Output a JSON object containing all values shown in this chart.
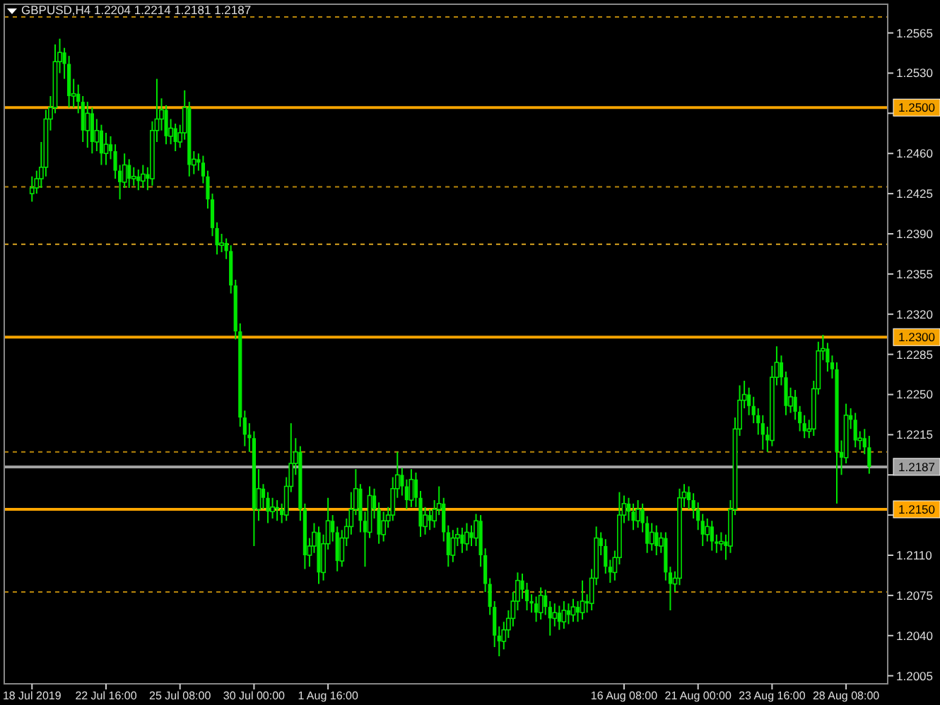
{
  "chart_data": {
    "type": "candlestick",
    "title": "GBPUSD,H4  1.2204 1.2214 1.2181 1.2187",
    "categories": [
      "18 Jul 2019",
      null,
      null,
      null,
      null,
      null,
      null,
      null,
      null,
      null,
      null,
      null,
      null,
      null,
      null,
      null,
      "22 Jul 16:00",
      null,
      null,
      null,
      null,
      null,
      null,
      null,
      null,
      null,
      null,
      null,
      null,
      null,
      null,
      null,
      "25 Jul 08:00",
      null,
      null,
      null,
      null,
      null,
      null,
      null,
      null,
      null,
      null,
      null,
      null,
      null,
      null,
      null,
      "30 Jul 00:00",
      null,
      null,
      null,
      null,
      null,
      null,
      null,
      null,
      null,
      null,
      null,
      null,
      null,
      null,
      null,
      "1 Aug 16:00",
      null,
      null,
      null,
      null,
      null,
      null,
      null,
      null,
      null,
      null,
      null,
      null,
      null,
      null,
      null,
      null,
      null,
      null,
      null,
      null,
      null,
      null,
      null,
      null,
      null,
      null,
      null,
      null,
      null,
      null,
      null,
      null,
      null,
      null,
      null,
      null,
      null,
      null,
      null,
      null,
      null,
      null,
      null,
      null,
      null,
      null,
      null,
      null,
      null,
      null,
      null,
      null,
      null,
      null,
      null,
      null,
      null,
      null,
      null,
      null,
      null,
      null,
      null,
      "16 Aug 08:00",
      null,
      null,
      null,
      null,
      null,
      null,
      null,
      null,
      null,
      null,
      null,
      null,
      null,
      null,
      null,
      "21 Aug 00:00",
      null,
      null,
      null,
      null,
      null,
      null,
      null,
      null,
      null,
      null,
      null,
      null,
      null,
      null,
      null,
      "23 Aug 16:00",
      null,
      null,
      null,
      null,
      null,
      null,
      null,
      null,
      null,
      null,
      null,
      null,
      null,
      null,
      null,
      "28 Aug 08:00",
      null,
      null,
      null,
      null,
      null
    ],
    "series": [
      {
        "color": "#00e600",
        "ohlc": [
          [
            1.2425,
            1.244,
            1.2418,
            1.243
          ],
          [
            1.243,
            1.2445,
            1.2425,
            1.2438
          ],
          [
            1.2438,
            1.247,
            1.243,
            1.2448
          ],
          [
            1.2448,
            1.2498,
            1.244,
            1.249
          ],
          [
            1.249,
            1.251,
            1.248,
            1.25
          ],
          [
            1.25,
            1.2555,
            1.2495,
            1.254
          ],
          [
            1.254,
            1.256,
            1.253,
            1.2548
          ],
          [
            1.2548,
            1.2552,
            1.2525,
            1.2538
          ],
          [
            1.2538,
            1.2545,
            1.25,
            1.251
          ],
          [
            1.251,
            1.2525,
            1.25,
            1.2512
          ],
          [
            1.2512,
            1.252,
            1.2495,
            1.2505
          ],
          [
            1.2505,
            1.251,
            1.247,
            1.248
          ],
          [
            1.248,
            1.2505,
            1.2465,
            1.2495
          ],
          [
            1.2495,
            1.25,
            1.246,
            1.247
          ],
          [
            1.247,
            1.249,
            1.2462,
            1.248
          ],
          [
            1.248,
            1.2485,
            1.245,
            1.246
          ],
          [
            1.246,
            1.2478,
            1.245,
            1.2468
          ],
          [
            1.2468,
            1.2475,
            1.2455,
            1.2462
          ],
          [
            1.2462,
            1.2468,
            1.2438,
            1.2445
          ],
          [
            1.2445,
            1.245,
            1.242,
            1.2435
          ],
          [
            1.2435,
            1.246,
            1.243,
            1.245
          ],
          [
            1.245,
            1.2455,
            1.243,
            1.2438
          ],
          [
            1.2438,
            1.2448,
            1.2432,
            1.244
          ],
          [
            1.244,
            1.2446,
            1.2428,
            1.2436
          ],
          [
            1.2436,
            1.245,
            1.243,
            1.2442
          ],
          [
            1.2442,
            1.2448,
            1.2428,
            1.2438
          ],
          [
            1.2438,
            1.2488,
            1.2432,
            1.248
          ],
          [
            1.248,
            1.2525,
            1.247,
            1.249
          ],
          [
            1.249,
            1.2508,
            1.248,
            1.2498
          ],
          [
            1.2498,
            1.2502,
            1.2468,
            1.2475
          ],
          [
            1.2475,
            1.249,
            1.2468,
            1.2482
          ],
          [
            1.2482,
            1.2486,
            1.2462,
            1.247
          ],
          [
            1.247,
            1.2485,
            1.2465,
            1.2478
          ],
          [
            1.2478,
            1.2515,
            1.2472,
            1.25
          ],
          [
            1.25,
            1.2505,
            1.244,
            1.245
          ],
          [
            1.245,
            1.2462,
            1.2442,
            1.2455
          ],
          [
            1.2455,
            1.246,
            1.2445,
            1.2452
          ],
          [
            1.2452,
            1.2458,
            1.2434,
            1.244
          ],
          [
            1.244,
            1.2445,
            1.2412,
            1.242
          ],
          [
            1.242,
            1.2425,
            1.2388,
            1.2395
          ],
          [
            1.2395,
            1.24,
            1.2372,
            1.238
          ],
          [
            1.238,
            1.239,
            1.2374,
            1.2382
          ],
          [
            1.2382,
            1.2386,
            1.2368,
            1.2375
          ],
          [
            1.2375,
            1.238,
            1.2338,
            1.2345
          ],
          [
            1.2345,
            1.235,
            1.2298,
            1.2305
          ],
          [
            1.2305,
            1.2312,
            1.2222,
            1.223
          ],
          [
            1.223,
            1.2236,
            1.2205,
            1.2215
          ],
          [
            1.2215,
            1.2225,
            1.22,
            1.2212
          ],
          [
            1.2212,
            1.2218,
            1.2118,
            1.215
          ],
          [
            1.215,
            1.2185,
            1.214,
            1.2168
          ],
          [
            1.2168,
            1.2172,
            1.215,
            1.216
          ],
          [
            1.216,
            1.2165,
            1.2138,
            1.2148
          ],
          [
            1.2148,
            1.216,
            1.2142,
            1.2152
          ],
          [
            1.2152,
            1.2158,
            1.214,
            1.215
          ],
          [
            1.215,
            1.2155,
            1.2138,
            1.2145
          ],
          [
            1.2145,
            1.2178,
            1.214,
            1.217
          ],
          [
            1.217,
            1.2225,
            1.2165,
            1.219
          ],
          [
            1.219,
            1.2212,
            1.218,
            1.22
          ],
          [
            1.22,
            1.2205,
            1.214,
            1.215
          ],
          [
            1.215,
            1.2155,
            1.2098,
            1.211
          ],
          [
            1.211,
            1.2125,
            1.21,
            1.2118
          ],
          [
            1.2118,
            1.2138,
            1.2112,
            1.213
          ],
          [
            1.213,
            1.2135,
            1.2085,
            1.2095
          ],
          [
            1.2095,
            1.2128,
            1.2088,
            1.212
          ],
          [
            1.212,
            1.216,
            1.2115,
            1.214
          ],
          [
            1.214,
            1.2145,
            1.2122,
            1.213
          ],
          [
            1.213,
            1.2135,
            1.2096,
            1.2105
          ],
          [
            1.2105,
            1.2132,
            1.21,
            1.2125
          ],
          [
            1.2125,
            1.2142,
            1.2118,
            1.2135
          ],
          [
            1.2135,
            1.2165,
            1.2128,
            1.215
          ],
          [
            1.215,
            1.2185,
            1.2145,
            1.2168
          ],
          [
            1.2168,
            1.2172,
            1.213,
            1.214
          ],
          [
            1.214,
            1.2148,
            1.21,
            1.213
          ],
          [
            1.213,
            1.217,
            1.2125,
            1.2162
          ],
          [
            1.2162,
            1.2168,
            1.2142,
            1.215
          ],
          [
            1.215,
            1.2156,
            1.212,
            1.2128
          ],
          [
            1.2128,
            1.2148,
            1.2122,
            1.214
          ],
          [
            1.214,
            1.2152,
            1.2134,
            1.2145
          ],
          [
            1.2145,
            1.2178,
            1.214,
            1.2168
          ],
          [
            1.2168,
            1.22,
            1.216,
            1.218
          ],
          [
            1.218,
            1.2186,
            1.2162,
            1.217
          ],
          [
            1.217,
            1.2176,
            1.215,
            1.2158
          ],
          [
            1.2158,
            1.2185,
            1.2152,
            1.2176
          ],
          [
            1.2176,
            1.2182,
            1.2152,
            1.216
          ],
          [
            1.216,
            1.2166,
            1.2126,
            1.2135
          ],
          [
            1.2135,
            1.2152,
            1.2128,
            1.2145
          ],
          [
            1.2145,
            1.215,
            1.2132,
            1.214
          ],
          [
            1.214,
            1.2158,
            1.2134,
            1.215
          ],
          [
            1.215,
            1.217,
            1.2145,
            1.2155
          ],
          [
            1.2155,
            1.216,
            1.2122,
            1.213
          ],
          [
            1.213,
            1.2136,
            1.21,
            1.211
          ],
          [
            1.211,
            1.2132,
            1.2104,
            1.2125
          ],
          [
            1.2125,
            1.2134,
            1.2118,
            1.2128
          ],
          [
            1.2128,
            1.2134,
            1.2112,
            1.212
          ],
          [
            1.212,
            1.2138,
            1.2114,
            1.213
          ],
          [
            1.213,
            1.2136,
            1.2118,
            1.2125
          ],
          [
            1.2125,
            1.2146,
            1.2118,
            1.214
          ],
          [
            1.214,
            1.2145,
            1.21,
            1.211
          ],
          [
            1.211,
            1.2116,
            1.2078,
            1.2085
          ],
          [
            1.2085,
            1.209,
            1.2058,
            1.2065
          ],
          [
            1.2065,
            1.207,
            1.203,
            1.204
          ],
          [
            1.204,
            1.2048,
            1.2022,
            1.2035
          ],
          [
            1.2035,
            1.2052,
            1.2028,
            1.2045
          ],
          [
            1.2045,
            1.2062,
            1.2038,
            1.2055
          ],
          [
            1.2055,
            1.2078,
            1.2048,
            1.207
          ],
          [
            1.207,
            1.2095,
            1.2062,
            1.2088
          ],
          [
            1.2088,
            1.2094,
            1.2072,
            1.208
          ],
          [
            1.208,
            1.2086,
            1.2062,
            1.207
          ],
          [
            1.207,
            1.2076,
            1.206,
            1.2068
          ],
          [
            1.2068,
            1.2074,
            1.2052,
            1.206
          ],
          [
            1.206,
            1.2082,
            1.2054,
            1.2075
          ],
          [
            1.2075,
            1.208,
            1.2058,
            1.2065
          ],
          [
            1.2065,
            1.207,
            1.204,
            1.2055
          ],
          [
            1.2055,
            1.2068,
            1.2048,
            1.206
          ],
          [
            1.206,
            1.2066,
            1.2045,
            1.2052
          ],
          [
            1.2052,
            1.207,
            1.2046,
            1.2062
          ],
          [
            1.2062,
            1.2068,
            1.205,
            1.2058
          ],
          [
            1.2058,
            1.2072,
            1.2052,
            1.2065
          ],
          [
            1.2065,
            1.207,
            1.2052,
            1.206
          ],
          [
            1.206,
            1.2088,
            1.2054,
            1.207
          ],
          [
            1.207,
            1.2076,
            1.206,
            1.2068
          ],
          [
            1.2068,
            1.2098,
            1.2062,
            1.209
          ],
          [
            1.209,
            1.2135,
            1.2084,
            1.2125
          ],
          [
            1.2125,
            1.213,
            1.211,
            1.2118
          ],
          [
            1.2118,
            1.2124,
            1.2094,
            1.21
          ],
          [
            1.21,
            1.2106,
            1.2086,
            1.2095
          ],
          [
            1.2095,
            1.2114,
            1.2088,
            1.2108
          ],
          [
            1.2108,
            1.2165,
            1.2102,
            1.2145
          ],
          [
            1.2145,
            1.2162,
            1.2138,
            1.2155
          ],
          [
            1.2155,
            1.216,
            1.214,
            1.2148
          ],
          [
            1.2148,
            1.2155,
            1.2132,
            1.214
          ],
          [
            1.214,
            1.2158,
            1.2134,
            1.215
          ],
          [
            1.215,
            1.2155,
            1.213,
            1.2138
          ],
          [
            1.2138,
            1.2144,
            1.2112,
            1.212
          ],
          [
            1.212,
            1.2138,
            1.2114,
            1.213
          ],
          [
            1.213,
            1.2136,
            1.211,
            1.2118
          ],
          [
            1.2118,
            1.213,
            1.2112,
            1.2125
          ],
          [
            1.2125,
            1.213,
            1.2088,
            1.2095
          ],
          [
            1.2095,
            1.21,
            1.2062,
            1.2085
          ],
          [
            1.2085,
            1.2096,
            1.2078,
            1.209
          ],
          [
            1.209,
            1.2168,
            1.2084,
            1.216
          ],
          [
            1.216,
            1.2172,
            1.2152,
            1.2165
          ],
          [
            1.2165,
            1.217,
            1.215,
            1.2158
          ],
          [
            1.2158,
            1.2164,
            1.2142,
            1.215
          ],
          [
            1.215,
            1.2156,
            1.2132,
            1.214
          ],
          [
            1.214,
            1.2146,
            1.2118,
            1.2128
          ],
          [
            1.2128,
            1.2142,
            1.2122,
            1.2135
          ],
          [
            1.2135,
            1.214,
            1.2114,
            1.2122
          ],
          [
            1.2122,
            1.2128,
            1.2112,
            1.212
          ],
          [
            1.212,
            1.213,
            1.2114,
            1.2122
          ],
          [
            1.2122,
            1.2128,
            1.2106,
            1.2118
          ],
          [
            1.2118,
            1.2158,
            1.2112,
            1.215
          ],
          [
            1.215,
            1.223,
            1.2145,
            1.222
          ],
          [
            1.222,
            1.2258,
            1.2214,
            1.2245
          ],
          [
            1.2245,
            1.2262,
            1.2238,
            1.225
          ],
          [
            1.225,
            1.2256,
            1.2232,
            1.224
          ],
          [
            1.224,
            1.2248,
            1.2225,
            1.2232
          ],
          [
            1.2232,
            1.2238,
            1.2215,
            1.2225
          ],
          [
            1.2225,
            1.2232,
            1.2202,
            1.2215
          ],
          [
            1.2215,
            1.2222,
            1.22,
            1.221
          ],
          [
            1.221,
            1.2275,
            1.2205,
            1.2265
          ],
          [
            1.2265,
            1.2292,
            1.2258,
            1.2278
          ],
          [
            1.2278,
            1.2284,
            1.2258,
            1.2265
          ],
          [
            1.2265,
            1.227,
            1.2232,
            1.224
          ],
          [
            1.224,
            1.2256,
            1.2234,
            1.2248
          ],
          [
            1.2248,
            1.2254,
            1.2228,
            1.2235
          ],
          [
            1.2235,
            1.224,
            1.2218,
            1.2225
          ],
          [
            1.2225,
            1.2232,
            1.2212,
            1.2218
          ],
          [
            1.2218,
            1.2228,
            1.2212,
            1.222
          ],
          [
            1.222,
            1.2262,
            1.2214,
            1.2255
          ],
          [
            1.2255,
            1.2296,
            1.225,
            1.2288
          ],
          [
            1.2288,
            1.2302,
            1.228,
            1.229
          ],
          [
            1.229,
            1.2295,
            1.227,
            1.2278
          ],
          [
            1.2278,
            1.2284,
            1.2264,
            1.2272
          ],
          [
            1.2272,
            1.2278,
            1.2155,
            1.22
          ],
          [
            1.22,
            1.221,
            1.218,
            1.2195
          ],
          [
            1.2195,
            1.2242,
            1.219,
            1.2232
          ],
          [
            1.2232,
            1.2238,
            1.222,
            1.2228
          ],
          [
            1.2228,
            1.2234,
            1.2204,
            1.221
          ],
          [
            1.221,
            1.2218,
            1.2202,
            1.2212
          ],
          [
            1.2212,
            1.222,
            1.2198,
            1.2204
          ],
          [
            1.2204,
            1.2214,
            1.2181,
            1.2187
          ]
        ]
      }
    ],
    "ylim": [
      1.1998,
      1.259
    ],
    "yticks": [
      {
        "value": 1.2005,
        "label": "1.2005"
      },
      {
        "value": 1.204,
        "label": "1.2040"
      },
      {
        "value": 1.2075,
        "label": "1.2075"
      },
      {
        "value": 1.211,
        "label": "1.2110"
      },
      {
        "value": 1.2145,
        "label": null
      },
      {
        "value": 1.218,
        "label": null
      },
      {
        "value": 1.2215,
        "label": "1.2215"
      },
      {
        "value": 1.225,
        "label": "1.2250"
      },
      {
        "value": 1.2285,
        "label": "1.2285"
      },
      {
        "value": 1.232,
        "label": "1.2320"
      },
      {
        "value": 1.2355,
        "label": "1.2355"
      },
      {
        "value": 1.239,
        "label": "1.2390"
      },
      {
        "value": 1.2425,
        "label": "1.2425"
      },
      {
        "value": 1.246,
        "label": "1.2460"
      },
      {
        "value": 1.2495,
        "label": null
      },
      {
        "value": 1.253,
        "label": "1.2530"
      },
      {
        "value": 1.2565,
        "label": "1.2565"
      }
    ],
    "ref_lines": [
      {
        "axis": "y",
        "value": 1.25,
        "label": "1.2500",
        "color": "#f5a300"
      },
      {
        "axis": "y",
        "value": 1.23,
        "label": "1.2300",
        "color": "#f5a300"
      },
      {
        "axis": "y",
        "value": 1.215,
        "label": "1.2150",
        "color": "#ffa500"
      },
      {
        "axis": "y",
        "value": 1.2187,
        "label": "1.2187",
        "color": "#a0a0a0"
      },
      {
        "axis": "y",
        "value": 1.2579,
        "color": "#b8860b",
        "line_style": "dashed"
      },
      {
        "axis": "y",
        "value": 1.2431,
        "color": "#b8860b",
        "line_style": "dashed"
      },
      {
        "axis": "y",
        "value": 1.2381,
        "color": "#daa520",
        "line_style": "dashed"
      },
      {
        "axis": "y",
        "value": 1.22,
        "color": "#b8860b",
        "line_style": "dashed"
      },
      {
        "axis": "y",
        "value": 1.2078,
        "color": "#b8860b",
        "line_style": "dashed"
      }
    ],
    "grid": false,
    "legend": false
  }
}
